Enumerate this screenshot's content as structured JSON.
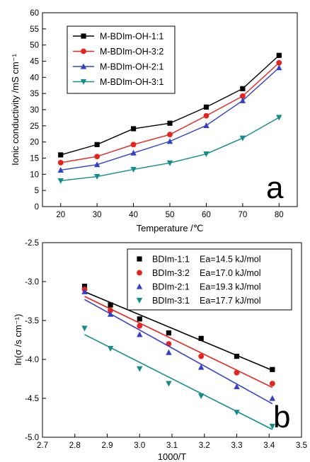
{
  "chart_data": [
    {
      "type": "line",
      "xlabel": "Temperature /℃",
      "ylabel": "Ionic conductivity /mS cm⁻¹",
      "xlim": [
        15,
        85
      ],
      "ylim": [
        0,
        60
      ],
      "xticks": [
        20,
        30,
        40,
        50,
        60,
        70,
        80
      ],
      "yticks": [
        0,
        5,
        10,
        15,
        20,
        25,
        30,
        35,
        40,
        45,
        50,
        55,
        60
      ],
      "x": [
        20,
        30,
        40,
        50,
        60,
        70,
        80
      ],
      "legend_position": "top-left",
      "panel_label": "a",
      "series": [
        {
          "name": "M-BDIm-OH-1:1",
          "marker": "square",
          "color": "#000000",
          "values": [
            16.0,
            19.2,
            24.1,
            25.8,
            30.8,
            36.5,
            46.8
          ]
        },
        {
          "name": "M-BDIm-OH-3:2",
          "marker": "circle",
          "color": "#e8231c",
          "values": [
            13.6,
            15.5,
            19.2,
            22.3,
            28.1,
            34.2,
            44.5
          ]
        },
        {
          "name": "M-BDIm-OH-2:1",
          "marker": "triangle-up",
          "color": "#3540c8",
          "values": [
            11.3,
            13.0,
            16.6,
            20.2,
            25.1,
            32.8,
            43.0
          ]
        },
        {
          "name": "M-BDIm-OH-3:1",
          "marker": "triangle-down",
          "color": "#148c8c",
          "values": [
            8.0,
            9.3,
            11.5,
            13.5,
            16.3,
            21.2,
            27.6
          ]
        }
      ]
    },
    {
      "type": "scatter",
      "xlabel": "1000/T",
      "ylabel": "ln(σ /s cm⁻¹)",
      "xlim": [
        2.7,
        3.5
      ],
      "ylim": [
        -5.0,
        -2.5
      ],
      "xticks": [
        2.7,
        2.8,
        2.9,
        3.0,
        3.1,
        3.2,
        3.3,
        3.4,
        3.5
      ],
      "yticks": [
        -5.0,
        -4.5,
        -4.0,
        -3.5,
        -3.0,
        -2.5
      ],
      "legend_position": "top-right",
      "panel_label": "b",
      "series": [
        {
          "name": "BDIm-1:1",
          "ea": "Ea=14.5 kJ/mol",
          "marker": "square",
          "color": "#000000",
          "x": [
            2.83,
            2.91,
            3.0,
            3.09,
            3.19,
            3.3,
            3.41
          ],
          "values": [
            -3.06,
            -3.3,
            -3.48,
            -3.66,
            -3.73,
            -3.96,
            -4.13
          ],
          "fit": [
            [
              2.83,
              -3.13
            ],
            [
              3.41,
              -4.14
            ]
          ]
        },
        {
          "name": "BDIm-3:2",
          "ea": "Ea=17.0 kJ/mol",
          "marker": "circle",
          "color": "#e8231c",
          "x": [
            2.83,
            2.91,
            3.0,
            3.09,
            3.19,
            3.3,
            3.41
          ],
          "values": [
            -3.1,
            -3.37,
            -3.57,
            -3.8,
            -3.96,
            -4.17,
            -4.31
          ],
          "fit": [
            [
              2.83,
              -3.19
            ],
            [
              3.41,
              -4.36
            ]
          ]
        },
        {
          "name": "BDIm-2:1",
          "ea": "Ea=19.3 kJ/mol",
          "marker": "triangle-up",
          "color": "#3540c8",
          "x": [
            2.83,
            2.91,
            3.0,
            3.09,
            3.19,
            3.3,
            3.41
          ],
          "values": [
            -3.13,
            -3.42,
            -3.68,
            -3.91,
            -4.1,
            -4.35,
            -4.5
          ],
          "fit": [
            [
              2.83,
              -3.23
            ],
            [
              3.41,
              -4.57
            ]
          ]
        },
        {
          "name": "BDIm-3:1",
          "ea": "Ea=17.7 kJ/mol",
          "marker": "triangle-down",
          "color": "#148c8c",
          "x": [
            2.83,
            2.91,
            3.0,
            3.09,
            3.19,
            3.3,
            3.41
          ],
          "values": [
            -3.6,
            -3.86,
            -4.12,
            -4.31,
            -4.47,
            -4.68,
            -4.86
          ],
          "fit": [
            [
              2.83,
              -3.68
            ],
            [
              3.41,
              -4.9
            ]
          ]
        }
      ]
    }
  ]
}
